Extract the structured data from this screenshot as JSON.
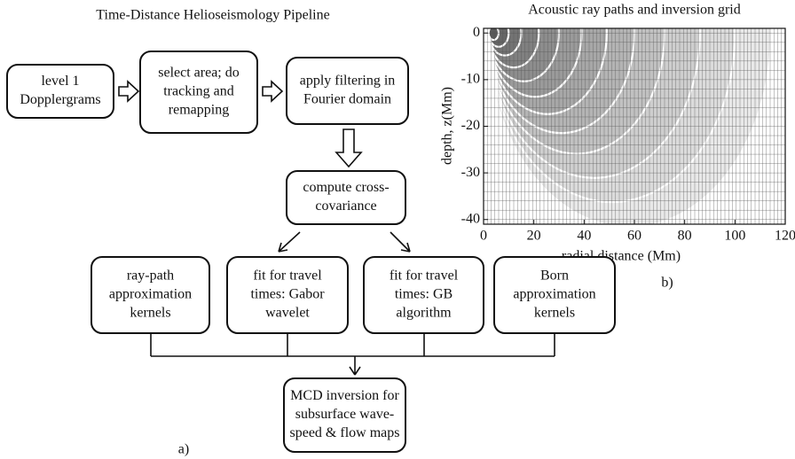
{
  "flowchart": {
    "title": "Time-Distance Helioseismology Pipeline",
    "nodes": [
      {
        "lines": [
          "level 1",
          "Dopplergrams"
        ]
      },
      {
        "lines": [
          "select area;  do",
          "tracking and",
          "remapping"
        ]
      },
      {
        "lines": [
          "apply filtering in",
          "Fourier domain"
        ]
      },
      {
        "lines": [
          "compute cross-",
          "covariance"
        ]
      },
      {
        "lines": [
          "ray-path",
          "approximation",
          "kernels"
        ]
      },
      {
        "lines": [
          "fit for travel",
          "times: Gabor",
          "wavelet"
        ]
      },
      {
        "lines": [
          "fit for travel",
          "times: GB",
          "algorithm"
        ]
      },
      {
        "lines": [
          "Born",
          "approximation",
          "kernels"
        ]
      },
      {
        "lines": [
          "MCD inversion for",
          "subsurface wave-",
          "speed & flow maps"
        ]
      }
    ],
    "panel_label": "a)"
  },
  "chart_data": {
    "type": "ray-paths",
    "title": "Acoustic ray paths and inversion grid",
    "xlabel": "radial distance (Mm)",
    "ylabel": "depth,  z(Mm)",
    "xlim": [
      0,
      120
    ],
    "ylim": [
      -41,
      1
    ],
    "xticks": [
      0,
      20,
      40,
      60,
      80,
      100,
      120
    ],
    "yticks": [
      0,
      -10,
      -20,
      -30,
      -40
    ],
    "panel_label": "b)"
  }
}
